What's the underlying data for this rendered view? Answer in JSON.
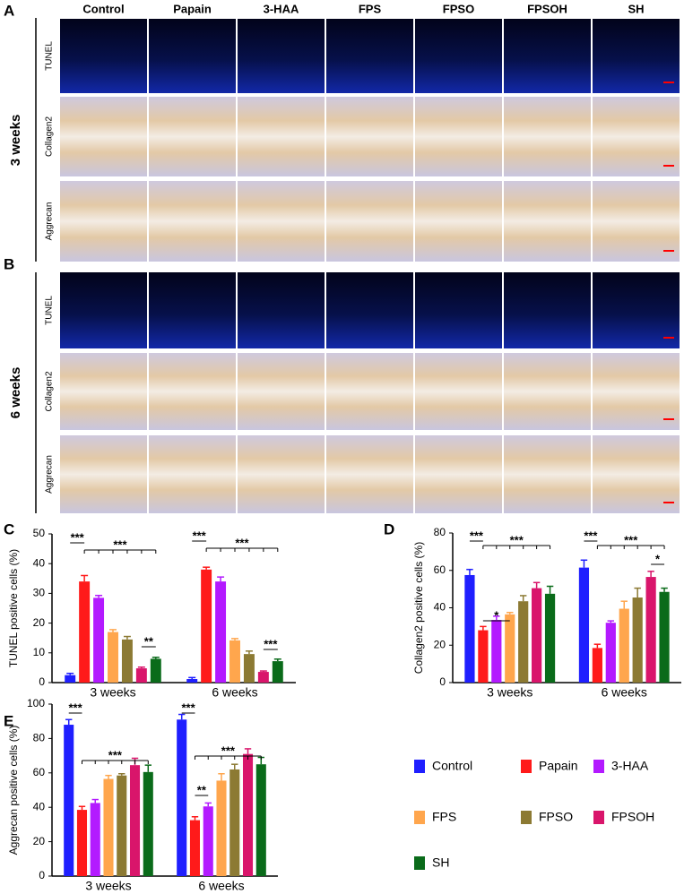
{
  "panels": {
    "labels": [
      "A",
      "B",
      "C",
      "D",
      "E"
    ],
    "columns": [
      "Control",
      "Papain",
      "3-HAA",
      "FPS",
      "FPSO",
      "FPSOH",
      "SH"
    ],
    "rows": [
      "TUNEL",
      "Collagen2",
      "Aggrecan"
    ],
    "timepoints": [
      "3 weeks",
      "6 weeks"
    ]
  },
  "chart_data": [
    {
      "type": "bar",
      "ylabel": "TUNEL positive cells (%)",
      "categories": [
        "3 weeks",
        "6 weeks"
      ],
      "ylim": [
        0,
        50
      ],
      "yticks": [
        0,
        10,
        20,
        30,
        40,
        50
      ],
      "series": [
        {
          "name": "Control",
          "color": "#1f1fff",
          "values": [
            2.5,
            1.2
          ],
          "errors": [
            0.6,
            0.5
          ]
        },
        {
          "name": "Papain",
          "color": "#ff1a1a",
          "values": [
            34,
            38
          ],
          "errors": [
            2,
            0.8
          ]
        },
        {
          "name": "3-HAA",
          "color": "#b31aff",
          "values": [
            28.5,
            34
          ],
          "errors": [
            0.8,
            1.5
          ]
        },
        {
          "name": "FPS",
          "color": "#ffa64d",
          "values": [
            17,
            14.2
          ],
          "errors": [
            0.8,
            0.6
          ]
        },
        {
          "name": "FPSO",
          "color": "#8c7a33",
          "values": [
            14.5,
            9.6
          ],
          "errors": [
            1,
            1
          ]
        },
        {
          "name": "FPSOH",
          "color": "#d9156b",
          "values": [
            4.8,
            3.6
          ],
          "errors": [
            0.4,
            0.3
          ]
        },
        {
          "name": "SH",
          "color": "#0a6b1a",
          "values": [
            8,
            7.2
          ],
          "errors": [
            0.5,
            0.7
          ]
        }
      ],
      "annotations": [
        "***",
        "***",
        "**",
        "***",
        "***",
        "***"
      ]
    },
    {
      "type": "bar",
      "ylabel": "Collagen2  positive cells (%)",
      "categories": [
        "3 weeks",
        "6 weeks"
      ],
      "ylim": [
        0,
        80
      ],
      "yticks": [
        0,
        20,
        40,
        60,
        80
      ],
      "series": [
        {
          "color": "#1f1fff",
          "values": [
            57.5,
            61.5
          ],
          "errors": [
            3,
            4
          ]
        },
        {
          "color": "#ff1a1a",
          "values": [
            28,
            18.5
          ],
          "errors": [
            2,
            2
          ]
        },
        {
          "color": "#b31aff",
          "values": [
            33.5,
            32
          ],
          "errors": [
            2,
            1
          ]
        },
        {
          "color": "#ffa64d",
          "values": [
            36.5,
            39.5
          ],
          "errors": [
            1,
            4
          ]
        },
        {
          "color": "#8c7a33",
          "values": [
            43.5,
            45.5
          ],
          "errors": [
            3,
            5
          ]
        },
        {
          "color": "#d9156b",
          "values": [
            50.5,
            56.5
          ],
          "errors": [
            3,
            3
          ]
        },
        {
          "color": "#0a6b1a",
          "values": [
            47.5,
            48.5
          ],
          "errors": [
            4,
            2
          ]
        }
      ],
      "annotations": [
        "***",
        "*",
        "***",
        "***",
        "***",
        "*"
      ]
    },
    {
      "type": "bar",
      "ylabel": "Aggrecan  positive cells (%)",
      "categories": [
        "3 weeks",
        "6 weeks"
      ],
      "ylim": [
        0,
        100
      ],
      "yticks": [
        0,
        20,
        40,
        60,
        80,
        100
      ],
      "series": [
        {
          "color": "#1f1fff",
          "values": [
            88,
            91
          ],
          "errors": [
            3,
            3
          ]
        },
        {
          "color": "#ff1a1a",
          "values": [
            38.5,
            32.5
          ],
          "errors": [
            2,
            2
          ]
        },
        {
          "color": "#b31aff",
          "values": [
            42.5,
            40.5
          ],
          "errors": [
            2,
            2
          ]
        },
        {
          "color": "#ffa64d",
          "values": [
            56.5,
            55.5
          ],
          "errors": [
            2,
            4
          ]
        },
        {
          "color": "#8c7a33",
          "values": [
            58.5,
            62
          ],
          "errors": [
            1,
            3
          ]
        },
        {
          "color": "#d9156b",
          "values": [
            64.5,
            71
          ],
          "errors": [
            4,
            3
          ]
        },
        {
          "color": "#0a6b1a",
          "values": [
            60.5,
            65
          ],
          "errors": [
            4,
            4
          ]
        }
      ],
      "annotations": [
        "***",
        "***",
        "***",
        "**",
        "***"
      ]
    }
  ]
}
